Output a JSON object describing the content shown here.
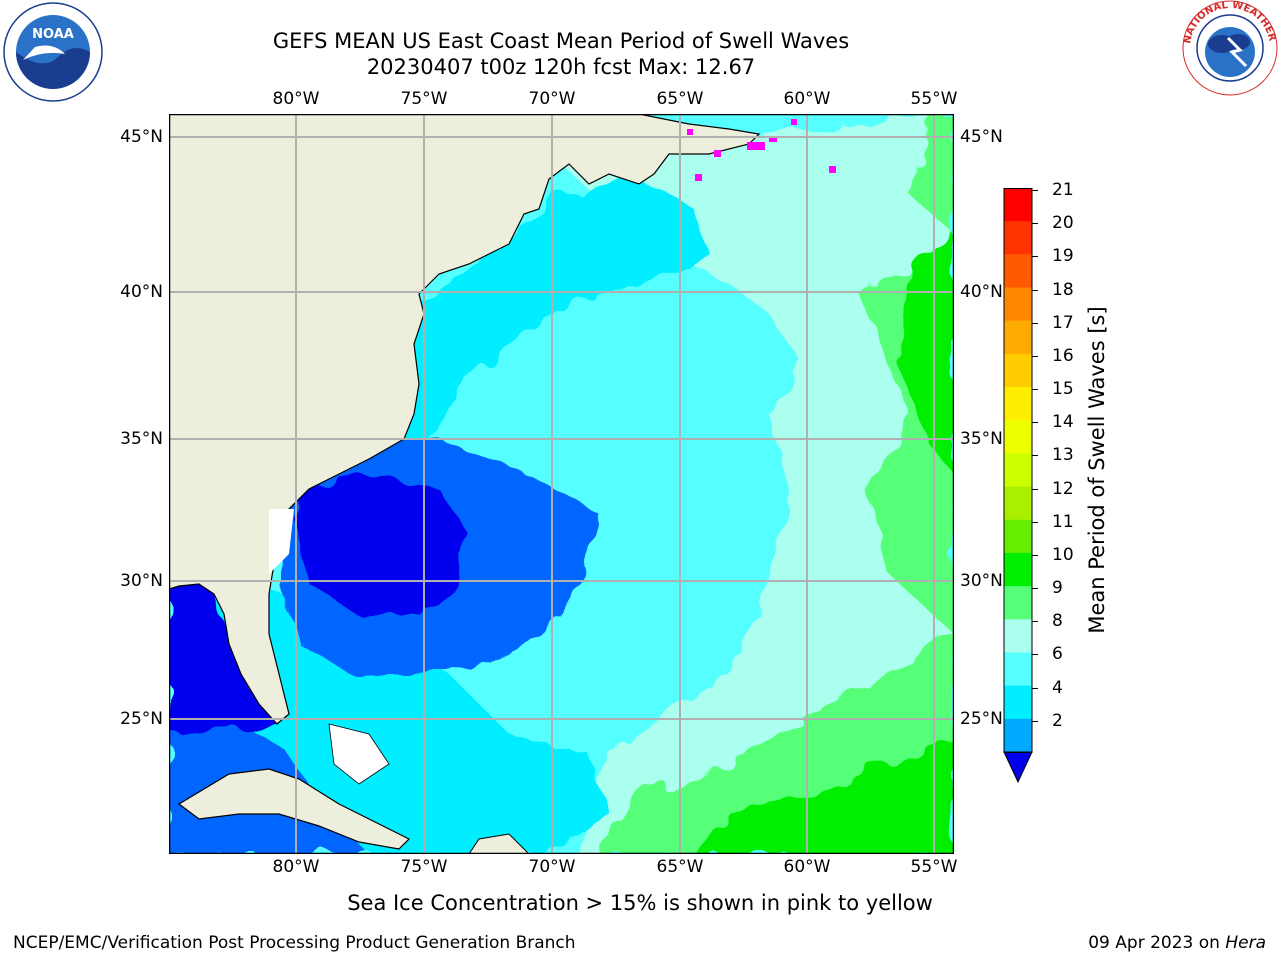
{
  "header": {
    "title_line1": "GEFS MEAN US East Coast Mean Period of Swell Waves",
    "title_line2": "20230407 t00z 120h fcst   Max: 12.67"
  },
  "logos": {
    "left": "NOAA",
    "left_ring_text": "NATIONAL OCEANIC AND ATMOSPHERIC ADMINISTRATION · U.S. DEPARTMENT OF COMMERCE",
    "right_ring_text": "NATIONAL WEATHER SERVICE"
  },
  "map": {
    "lon_ticks": [
      "80°W",
      "75°W",
      "70°W",
      "65°W",
      "60°W",
      "55°W"
    ],
    "lat_ticks": [
      "45°N",
      "40°N",
      "35°N",
      "30°N",
      "25°N"
    ],
    "extent": {
      "lon_min": -85,
      "lon_max": -54.3,
      "lat_min": 20.5,
      "lat_max": 45.8
    }
  },
  "colorbar": {
    "label": "Mean Period of Swell Waves [s]",
    "ticks": [
      "21",
      "20",
      "19",
      "18",
      "17",
      "16",
      "15",
      "14",
      "13",
      "12",
      "11",
      "10",
      "9",
      "8",
      "6",
      "4",
      "2"
    ],
    "colors": [
      "#ff0000",
      "#ff3300",
      "#ff5a00",
      "#ff8800",
      "#ffaa00",
      "#ffcc00",
      "#ffee00",
      "#eeff00",
      "#ccff00",
      "#aaee00",
      "#66ee00",
      "#00ee00",
      "#55ff77",
      "#aaffee",
      "#55ffff",
      "#00eeff",
      "#00aaff",
      "#0066ff"
    ],
    "under_color": "#0000ee",
    "land_color": "#eeeedd",
    "ice_color": "#ff00ff"
  },
  "footer": {
    "note": "Sea Ice Concentration > 15% is shown in pink to yellow",
    "left": "NCEP/EMC/Verification Post Processing Product Generation Branch",
    "date": "09 Apr 2023 on",
    "machine": "Hera"
  }
}
